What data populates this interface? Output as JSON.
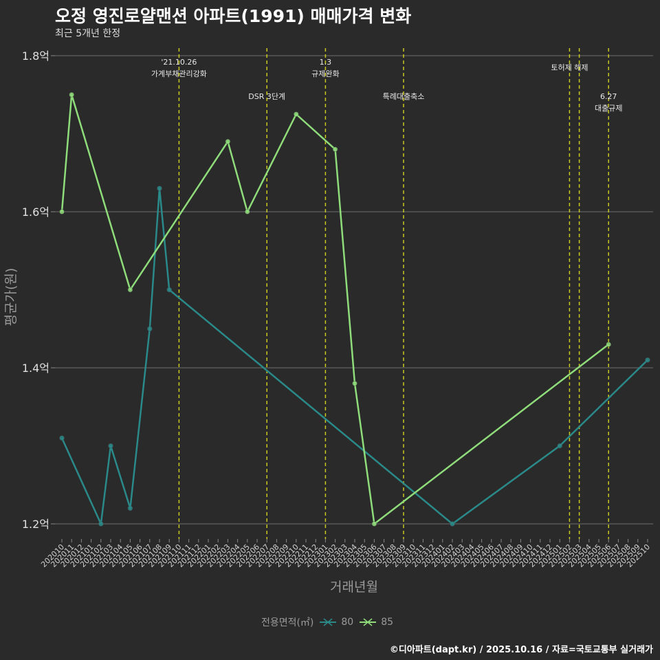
{
  "title": "오정 영진로얄맨션 아파트(1991) 매매가격 변화",
  "subtitle": "최근 5개년 한정",
  "caption": "©디아파트(dapt.kr) / 2025.10.16 / 자료=국토교통부 실거래가",
  "legend_title": "전용면적(㎡)",
  "chart_data": {
    "type": "line",
    "xlabel": "거래년월",
    "ylabel": "평균가(원)",
    "categories": [
      "202010",
      "202011",
      "202012",
      "202101",
      "202102",
      "202103",
      "202104",
      "202105",
      "202106",
      "202107",
      "202108",
      "202109",
      "202110",
      "202111",
      "202112",
      "202201",
      "202202",
      "202203",
      "202204",
      "202205",
      "202206",
      "202207",
      "202208",
      "202209",
      "202210",
      "202211",
      "202212",
      "202301",
      "202302",
      "202303",
      "202304",
      "202305",
      "202306",
      "202307",
      "202308",
      "202309",
      "202310",
      "202311",
      "202312",
      "202401",
      "202402",
      "202403",
      "202404",
      "202405",
      "202406",
      "202407",
      "202408",
      "202409",
      "202410",
      "202411",
      "202412",
      "202501",
      "202502",
      "202503",
      "202504",
      "202505",
      "202506",
      "202507",
      "202508",
      "202509",
      "202510"
    ],
    "y_ticks": [
      {
        "value": 1.2,
        "label": "1.2억"
      },
      {
        "value": 1.4,
        "label": "1.4억"
      },
      {
        "value": 1.6,
        "label": "1.6억"
      },
      {
        "value": 1.8,
        "label": "1.8억"
      }
    ],
    "ylim": [
      1.18,
      1.82
    ],
    "grid": true,
    "legend_position": "bottom",
    "series": [
      {
        "name": "80",
        "color": "#2a8a8a",
        "points": [
          {
            "x": "202010",
            "y": 1.31
          },
          {
            "x": "202102",
            "y": 1.2
          },
          {
            "x": "202103",
            "y": 1.3
          },
          {
            "x": "202105",
            "y": 1.22
          },
          {
            "x": "202107",
            "y": 1.45
          },
          {
            "x": "202108",
            "y": 1.63
          },
          {
            "x": "202109",
            "y": 1.5
          },
          {
            "x": "202402",
            "y": 1.2
          },
          {
            "x": "202501",
            "y": 1.3
          },
          {
            "x": "202510",
            "y": 1.41
          }
        ]
      },
      {
        "name": "85",
        "color": "#8fdc7a",
        "points": [
          {
            "x": "202010",
            "y": 1.6
          },
          {
            "x": "202011",
            "y": 1.75
          },
          {
            "x": "202105",
            "y": 1.5
          },
          {
            "x": "202203",
            "y": 1.69
          },
          {
            "x": "202205",
            "y": 1.6
          },
          {
            "x": "202210",
            "y": 1.725
          },
          {
            "x": "202302",
            "y": 1.68
          },
          {
            "x": "202304",
            "y": 1.38
          },
          {
            "x": "202306",
            "y": 1.2
          },
          {
            "x": "202506",
            "y": 1.43
          }
        ]
      }
    ],
    "events": [
      {
        "x": "202110",
        "lines": [
          "'21.10.26",
          "가계부채관리강화"
        ],
        "row": 1
      },
      {
        "x": "202207",
        "lines": [
          "DSR 3단계"
        ],
        "row": 2
      },
      {
        "x": "202301",
        "lines": [
          "1.3",
          "규제완화"
        ],
        "row": 1
      },
      {
        "x": "202309",
        "lines": [
          "특례대출축소"
        ],
        "row": 2
      },
      {
        "x": "202502",
        "lines": [
          "토허제 해제"
        ],
        "row": 1
      },
      {
        "x": "202503",
        "lines": [],
        "row": 1
      },
      {
        "x": "202506",
        "lines": [
          "6.27",
          "대출규제"
        ],
        "row": 2
      }
    ],
    "event_line_color": "#c8c820"
  }
}
